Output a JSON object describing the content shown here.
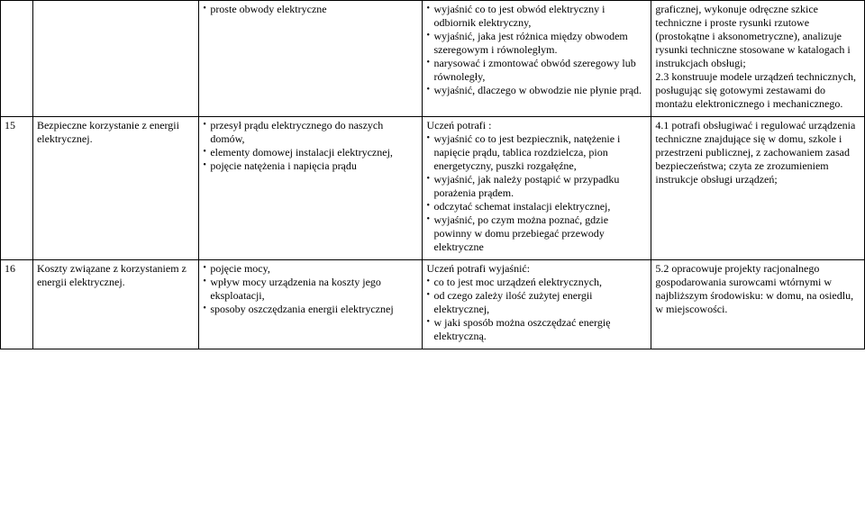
{
  "rows": [
    {
      "num": "",
      "topic": "",
      "colA_items": [
        "proste obwody elektryczne"
      ],
      "colB_items": [
        "wyjaśnić co to jest obwód elektryczny i odbiornik elektryczny,",
        "wyjaśnić, jaka jest różnica między obwodem szeregowym i równoległym.",
        "narysować i zmontować obwód szeregowy lub równoległy,",
        "wyjaśnić, dlaczego w obwodzie nie płynie prąd."
      ],
      "colC_text": "graficznej, wykonuje odręczne szkice techniczne i proste rysunki rzutowe (prostokątne i aksonometryczne), analizuje rysunki techniczne stosowane w katalogach i instrukcjach obsługi;\n2.3 konstruuje modele urządzeń technicznych, posługując się gotowymi zestawami do montażu elektronicznego i mechanicznego."
    },
    {
      "num": "15",
      "topic": "Bezpieczne korzystanie z energii elektrycznej.",
      "colA_items": [
        "przesył prądu elektrycznego do naszych domów,",
        "elementy domowej instalacji elektrycznej,",
        "pojęcie natężenia i napięcia prądu"
      ],
      "colB_lead": "Uczeń potrafi :",
      "colB_items": [
        "wyjaśnić co to jest bezpiecznik, natężenie i napięcie prądu, tablica rozdzielcza, pion energetyczny, puszki rozgałęźne,",
        "wyjaśnić, jak należy postąpić w przypadku porażenia prądem.",
        "odczytać schemat instalacji elektrycznej,",
        "wyjaśnić, po czym można poznać, gdzie powinny w domu przebiegać przewody elektryczne"
      ],
      "colC_text": "4.1 potrafi obsługiwać i regulować urządzenia techniczne znajdujące się w domu, szkole i przestrzeni publicznej, z zachowaniem zasad bezpieczeństwa; czyta ze zrozumieniem instrukcje obsługi urządzeń;"
    },
    {
      "num": "16",
      "topic": "Koszty związane z korzystaniem z energii elektrycznej.",
      "colA_items": [
        "pojęcie mocy,",
        "wpływ mocy urządzenia na koszty jego eksploatacji,",
        "sposoby oszczędzania energii elektrycznej"
      ],
      "colB_lead": "Uczeń potrafi wyjaśnić:",
      "colB_items": [
        "co to jest moc urządzeń elektrycznych,",
        "od czego zależy ilość zużytej energii elektrycznej,",
        "w jaki sposób można oszczędzać energię elektryczną."
      ],
      "colC_text": "5.2 opracowuje projekty racjonalnego gospodarowania surowcami wtórnymi w najbliższym środowisku: w domu, na osiedlu, w miejscowości."
    }
  ]
}
